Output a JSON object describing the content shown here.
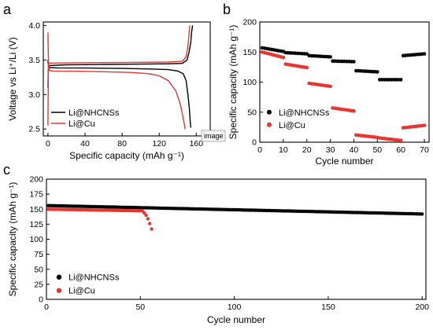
{
  "panel_labels": {
    "a": "a",
    "b": "b",
    "c": "c"
  },
  "tooltip": "image",
  "colors": {
    "black": "#000000",
    "red": "#e8342f"
  },
  "chart_data": [
    {
      "id": "a",
      "type": "line",
      "xlabel": "Specific capacity (mAh g⁻¹)",
      "ylabel": "Voltage vs Li⁺/Li (V)",
      "xlim": [
        -5,
        175
      ],
      "ylim": [
        2.4,
        4.05
      ],
      "xticks": [
        0,
        40,
        80,
        120,
        160
      ],
      "yticks": [
        2.5,
        3.0,
        3.5,
        4.0
      ],
      "legend_position": "bottom-left",
      "series": [
        {
          "name": "Li@NHCNSs",
          "color": "#000000",
          "discharge": [
            [
              0,
              3.5
            ],
            [
              0.5,
              3.42
            ],
            [
              2,
              3.39
            ],
            [
              10,
              3.385
            ],
            [
              40,
              3.383
            ],
            [
              80,
              3.378
            ],
            [
              110,
              3.37
            ],
            [
              130,
              3.36
            ],
            [
              140,
              3.34
            ],
            [
              146,
              3.3
            ],
            [
              149,
              3.2
            ],
            [
              151,
              3.0
            ],
            [
              152.5,
              2.8
            ],
            [
              153.5,
              2.6
            ],
            [
              154,
              2.52
            ]
          ],
          "charge": [
            [
              0,
              3.1
            ],
            [
              0.5,
              3.38
            ],
            [
              2,
              3.42
            ],
            [
              20,
              3.43
            ],
            [
              60,
              3.435
            ],
            [
              100,
              3.44
            ],
            [
              130,
              3.445
            ],
            [
              145,
              3.45
            ],
            [
              150,
              3.5
            ],
            [
              152,
              3.6
            ],
            [
              154,
              3.75
            ],
            [
              155,
              3.9
            ],
            [
              156,
              4.0
            ]
          ]
        },
        {
          "name": "Li@Cu",
          "color": "#e8342f",
          "discharge": [
            [
              0,
              3.9
            ],
            [
              0.5,
              3.5
            ],
            [
              1.5,
              3.35
            ],
            [
              5,
              3.34
            ],
            [
              30,
              3.338
            ],
            [
              60,
              3.33
            ],
            [
              90,
              3.32
            ],
            [
              110,
              3.3
            ],
            [
              120,
              3.27
            ],
            [
              130,
              3.2
            ],
            [
              138,
              3.05
            ],
            [
              143,
              2.85
            ],
            [
              146,
              2.65
            ],
            [
              148,
              2.5
            ]
          ],
          "charge": [
            [
              0,
              2.55
            ],
            [
              0.5,
              3.45
            ],
            [
              3,
              3.455
            ],
            [
              40,
              3.46
            ],
            [
              90,
              3.465
            ],
            [
              130,
              3.47
            ],
            [
              145,
              3.48
            ],
            [
              149,
              3.55
            ],
            [
              151,
              3.7
            ],
            [
              152,
              3.85
            ],
            [
              153,
              4.0
            ]
          ]
        }
      ]
    },
    {
      "id": "b",
      "type": "scatter",
      "xlabel": "Cycle number",
      "ylabel": "Specific capacity (mAh g⁻¹)",
      "xlim": [
        0,
        72
      ],
      "ylim": [
        0,
        200
      ],
      "xticks": [
        0,
        10,
        20,
        30,
        40,
        50,
        60,
        70
      ],
      "yticks": [
        0,
        50,
        100,
        150,
        200
      ],
      "legend_position": "center-left",
      "series": [
        {
          "name": "Li@NHCNSs",
          "color": "#000000",
          "segments": [
            {
              "from": 1,
              "to": 10,
              "start": 157,
              "end": 151
            },
            {
              "from": 11,
              "to": 20,
              "start": 149,
              "end": 147
            },
            {
              "from": 21,
              "to": 30,
              "start": 144,
              "end": 142
            },
            {
              "from": 31,
              "to": 40,
              "start": 135,
              "end": 134
            },
            {
              "from": 41,
              "to": 50,
              "start": 119,
              "end": 117
            },
            {
              "from": 51,
              "to": 60,
              "start": 104,
              "end": 104
            },
            {
              "from": 61,
              "to": 70,
              "start": 144,
              "end": 147
            }
          ]
        },
        {
          "name": "Li@Cu",
          "color": "#e8342f",
          "segments": [
            {
              "from": 1,
              "to": 10,
              "start": 150,
              "end": 141
            },
            {
              "from": 11,
              "to": 20,
              "start": 130,
              "end": 124
            },
            {
              "from": 21,
              "to": 30,
              "start": 98,
              "end": 93
            },
            {
              "from": 31,
              "to": 40,
              "start": 57,
              "end": 52
            },
            {
              "from": 41,
              "to": 50,
              "start": 12,
              "end": 8
            },
            {
              "from": 51,
              "to": 60,
              "start": 7,
              "end": 3
            },
            {
              "from": 61,
              "to": 70,
              "start": 24,
              "end": 28
            }
          ]
        }
      ]
    },
    {
      "id": "c",
      "type": "scatter",
      "xlabel": "Cycle number",
      "ylabel": "Specific capacity (mAh g⁻¹)",
      "xlim": [
        0,
        202
      ],
      "ylim": [
        0,
        200
      ],
      "xticks": [
        0,
        50,
        100,
        150,
        200
      ],
      "yticks": [
        0,
        25,
        50,
        75,
        100,
        125,
        150,
        175,
        200
      ],
      "legend_position": "bottom-left",
      "series": [
        {
          "name": "Li@NHCNSs",
          "color": "#000000",
          "from": 1,
          "to": 200,
          "start": 156,
          "end": 142
        },
        {
          "name": "Li@Cu",
          "color": "#e8342f",
          "from": 1,
          "to": 56,
          "start": 150,
          "end": 147,
          "tail": [
            [
              52,
              144
            ],
            [
              53,
              140
            ],
            [
              54,
              134
            ],
            [
              55,
              126
            ],
            [
              56,
              117
            ]
          ]
        }
      ]
    }
  ]
}
